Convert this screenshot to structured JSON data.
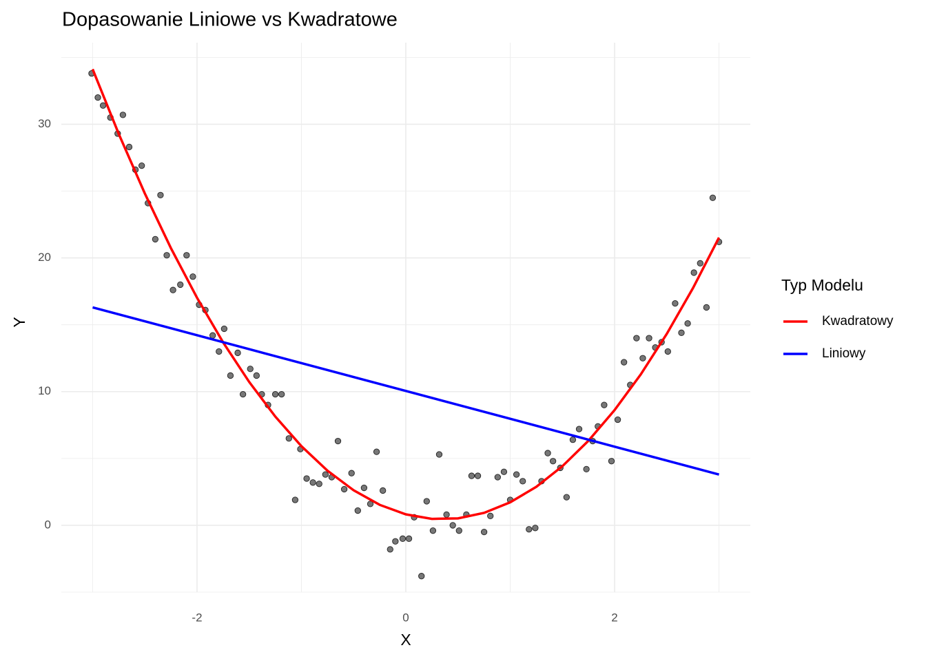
{
  "chart_data": {
    "type": "scatter",
    "title": "Dopasowanie Liniowe vs Kwadratowe",
    "xlabel": "X",
    "ylabel": "Y",
    "legend_title": "Typ Modelu",
    "legend_position": "right",
    "grid": true,
    "xlim": [
      -3.3,
      3.3
    ],
    "ylim": [
      -5,
      36.1
    ],
    "xticks": [
      -2,
      0,
      2
    ],
    "yticks": [
      0,
      10,
      20,
      30
    ],
    "xminor_ticks": [
      -3,
      -1,
      1,
      3
    ],
    "yminor_ticks": [
      -5,
      5,
      15,
      25,
      35
    ],
    "points": {
      "color": "#777777",
      "x": [
        -3.01,
        -2.95,
        -2.9,
        -2.83,
        -2.76,
        -2.71,
        -2.65,
        -2.59,
        -2.53,
        -2.47,
        -2.4,
        -2.35,
        -2.29,
        -2.23,
        -2.16,
        -2.1,
        -2.04,
        -1.98,
        -1.92,
        -1.85,
        -1.79,
        -1.74,
        -1.68,
        -1.61,
        -1.56,
        -1.49,
        -1.43,
        -1.38,
        -1.32,
        -1.25,
        -1.19,
        -1.12,
        -1.06,
        -1.01,
        -0.95,
        -0.89,
        -0.83,
        -0.77,
        -0.71,
        -0.65,
        -0.59,
        -0.52,
        -0.46,
        -0.4,
        -0.34,
        -0.28,
        -0.22,
        -0.15,
        -0.1,
        -0.03,
        0.03,
        0.08,
        0.15,
        0.2,
        0.26,
        0.32,
        0.39,
        0.45,
        0.51,
        0.58,
        0.63,
        0.69,
        0.75,
        0.81,
        0.88,
        0.94,
        1.0,
        1.06,
        1.12,
        1.18,
        1.24,
        1.3,
        1.36,
        1.41,
        1.48,
        1.54,
        1.6,
        1.66,
        1.73,
        1.79,
        1.84,
        1.9,
        1.97,
        2.03,
        2.09,
        2.15,
        2.21,
        2.27,
        2.33,
        2.39,
        2.45,
        2.51,
        2.58,
        2.64,
        2.7,
        2.76,
        2.82,
        2.88,
        2.94,
        3.0
      ],
      "y": [
        33.8,
        32.0,
        31.4,
        30.5,
        29.3,
        30.7,
        28.3,
        26.6,
        26.9,
        24.1,
        21.4,
        24.7,
        20.2,
        17.6,
        18.0,
        20.2,
        18.6,
        16.5,
        16.1,
        14.2,
        13.0,
        14.7,
        11.2,
        12.9,
        9.8,
        11.7,
        11.2,
        9.8,
        9.0,
        9.8,
        9.8,
        6.5,
        1.9,
        5.7,
        3.5,
        3.2,
        3.1,
        3.8,
        3.6,
        6.3,
        2.7,
        3.9,
        1.1,
        2.8,
        1.6,
        5.5,
        2.6,
        -1.8,
        -1.2,
        -1.0,
        -1.0,
        0.6,
        -3.8,
        1.8,
        -0.4,
        5.3,
        0.8,
        0.0,
        -0.4,
        0.8,
        3.7,
        3.7,
        -0.5,
        0.7,
        3.6,
        4.0,
        1.9,
        3.8,
        3.3,
        -0.3,
        -0.2,
        3.3,
        5.4,
        4.8,
        4.3,
        2.1,
        6.4,
        7.2,
        4.2,
        6.3,
        7.4,
        9.0,
        4.8,
        7.9,
        12.2,
        10.5,
        14.0,
        12.5,
        14.0,
        13.3,
        13.7,
        13.0,
        16.6,
        14.4,
        15.1,
        18.9,
        19.6,
        16.3,
        24.5,
        21.2
      ]
    },
    "series": [
      {
        "name": "Kwadratowy",
        "color": "#ff0000",
        "x": [
          -3,
          -2.75,
          -2.5,
          -2.25,
          -2,
          -1.75,
          -1.5,
          -1.25,
          -1,
          -0.75,
          -0.5,
          -0.25,
          0,
          0.25,
          0.5,
          0.75,
          1,
          1.25,
          1.5,
          1.75,
          2,
          2.25,
          2.5,
          2.75,
          3
        ],
        "values": [
          34.12,
          29.28,
          24.82,
          20.73,
          17.02,
          13.68,
          10.72,
          8.13,
          5.92,
          4.08,
          2.62,
          1.53,
          0.82,
          0.48,
          0.52,
          0.93,
          1.72,
          2.88,
          4.42,
          6.33,
          8.62,
          11.28,
          14.32,
          17.73,
          21.52
        ]
      },
      {
        "name": "Liniowy",
        "color": "#0000ff",
        "x": [
          -3,
          3
        ],
        "values": [
          16.3,
          3.8
        ]
      }
    ]
  }
}
